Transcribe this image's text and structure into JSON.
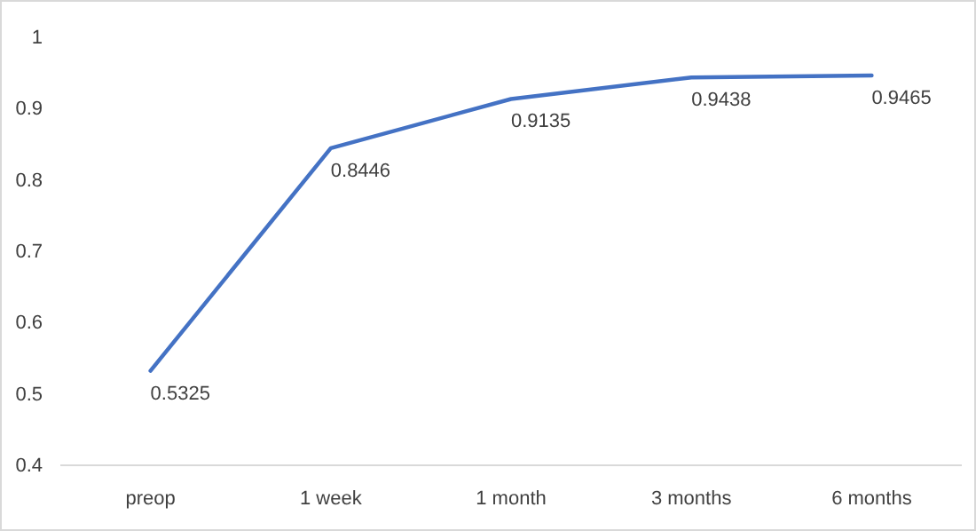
{
  "chart_data": {
    "type": "line",
    "categories": [
      "preop",
      "1 week",
      "1 month",
      "3 months",
      "6 months"
    ],
    "series": [
      {
        "color": "#4472c4",
        "values": [
          0.5325,
          0.8446,
          0.9135,
          0.9438,
          0.9465
        ]
      }
    ],
    "ylim": [
      0.4,
      1
    ],
    "yticks": [
      0.4,
      0.5,
      0.6,
      0.7,
      0.8,
      0.9,
      1
    ],
    "data_labels": true,
    "marker": "none",
    "line_style": "solid"
  }
}
